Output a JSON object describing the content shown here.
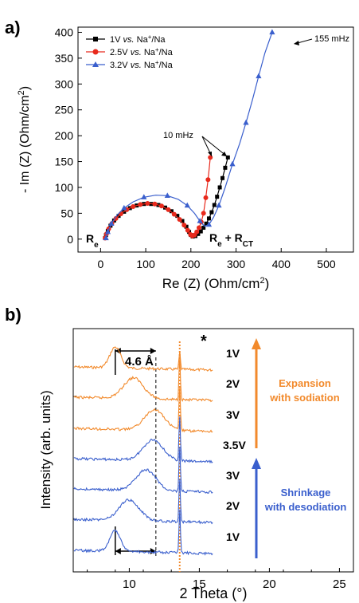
{
  "panel_a": {
    "label": "a)",
    "chart_data": {
      "type": "scatter",
      "xlabel": "Re (Z) (Ohm/cm²)",
      "ylabel": "- Im (Z) (Ohm/cm²)",
      "xlim": [
        -50,
        560
      ],
      "ylim": [
        -25,
        410
      ],
      "xticks": [
        0,
        100,
        200,
        300,
        400,
        500
      ],
      "yticks": [
        0,
        50,
        100,
        150,
        200,
        250,
        300,
        350,
        400
      ],
      "legend_position": "top-left",
      "series": [
        {
          "name": "1V vs. Na⁺/Na",
          "color": "#000000",
          "marker": "square",
          "points": [
            [
              10,
              2
            ],
            [
              12,
              8
            ],
            [
              16,
              16
            ],
            [
              22,
              26
            ],
            [
              30,
              36
            ],
            [
              40,
              45
            ],
            [
              52,
              53
            ],
            [
              65,
              60
            ],
            [
              80,
              65
            ],
            [
              96,
              68
            ],
            [
              112,
              68
            ],
            [
              128,
              66
            ],
            [
              143,
              61
            ],
            [
              157,
              54
            ],
            [
              170,
              45
            ],
            [
              181,
              35
            ],
            [
              190,
              24
            ],
            [
              196,
              14
            ],
            [
              200,
              8
            ],
            [
              204,
              5
            ],
            [
              210,
              6
            ],
            [
              216,
              10
            ],
            [
              222,
              15
            ],
            [
              228,
              22
            ],
            [
              234,
              30
            ],
            [
              240,
              40
            ],
            [
              246,
              52
            ],
            [
              252,
              66
            ],
            [
              258,
              82
            ],
            [
              264,
              100
            ],
            [
              270,
              118
            ],
            [
              276,
              138
            ],
            [
              282,
              158
            ]
          ]
        },
        {
          "name": "2.5V vs. Na⁺/Na",
          "color": "#e8291c",
          "marker": "circle",
          "points": [
            [
              10,
              2
            ],
            [
              13,
              10
            ],
            [
              18,
              20
            ],
            [
              25,
              30
            ],
            [
              34,
              40
            ],
            [
              45,
              49
            ],
            [
              58,
              57
            ],
            [
              72,
              63
            ],
            [
              88,
              67
            ],
            [
              104,
              69
            ],
            [
              120,
              68
            ],
            [
              135,
              64
            ],
            [
              150,
              57
            ],
            [
              163,
              48
            ],
            [
              175,
              38
            ],
            [
              185,
              27
            ],
            [
              193,
              17
            ],
            [
              199,
              9
            ],
            [
              203,
              6
            ],
            [
              208,
              8
            ],
            [
              213,
              14
            ],
            [
              218,
              22
            ],
            [
              223,
              33
            ],
            [
              228,
              50
            ],
            [
              233,
              80
            ],
            [
              238,
              115
            ],
            [
              243,
              158
            ]
          ]
        },
        {
          "name": "3.2V vs. Na⁺/Na",
          "color": "#3a5fcd",
          "marker": "triangle",
          "points": [
            [
              12,
              2
            ],
            [
              16,
              14
            ],
            [
              24,
              30
            ],
            [
              36,
              46
            ],
            [
              52,
              60
            ],
            [
              72,
              72
            ],
            [
              96,
              81
            ],
            [
              122,
              85
            ],
            [
              148,
              84
            ],
            [
              172,
              77
            ],
            [
              192,
              65
            ],
            [
              208,
              50
            ],
            [
              220,
              35
            ],
            [
              230,
              25
            ],
            [
              240,
              28
            ],
            [
              250,
              42
            ],
            [
              262,
              65
            ],
            [
              276,
              100
            ],
            [
              292,
              145
            ],
            [
              308,
              185
            ],
            [
              322,
              225
            ],
            [
              336,
              268
            ],
            [
              350,
              315
            ],
            [
              364,
              360
            ],
            [
              380,
              400
            ]
          ]
        }
      ],
      "annotations": [
        "10 mHz",
        "155 mHz",
        "Re",
        "Re + RCT"
      ]
    },
    "ytick_labels": [
      "0",
      "50",
      "100",
      "150",
      "200",
      "250",
      "300",
      "350",
      "400"
    ],
    "xtick_labels": [
      "0",
      "100",
      "200",
      "300",
      "400",
      "500"
    ],
    "legend": [
      {
        "volt": "1V",
        "vs": "vs.",
        "na": "Na",
        "sup": "+",
        "tail": "/Na"
      },
      {
        "volt": "2.5V",
        "vs": "vs.",
        "na": "Na",
        "sup": "+",
        "tail": "/Na"
      },
      {
        "volt": "3.2V",
        "vs": "vs.",
        "na": "Na",
        "sup": "+",
        "tail": "/Na"
      }
    ],
    "ylabel_main": "- Im (Z) (Ohm/cm",
    "ylabel_sup": "2",
    "ylabel_end": ")",
    "xlabel_main": "Re (Z) (Ohm/cm",
    "xlabel_sup": "2",
    "xlabel_end": ")",
    "ann_10mhz": "10 mHz",
    "ann_155mhz": "155 mHz",
    "ann_re": "R",
    "ann_re_sub": "e",
    "ann_rect": "R",
    "ann_rect_sub": "e",
    "ann_rect_plus": " + R",
    "ann_rect_sub2": "CT"
  },
  "panel_b": {
    "label": "b)",
    "chart_data": {
      "type": "line",
      "xlabel": "2 Theta (°)",
      "ylabel": "Intensity (arb. units)",
      "xlim": [
        6,
        26
      ],
      "xticks": [
        10,
        15,
        20,
        25
      ],
      "series": [
        {
          "name": "1V",
          "color": "#f28a2c",
          "peak": 9.0
        },
        {
          "name": "2V",
          "color": "#f28a2c",
          "peak": 10.3
        },
        {
          "name": "3V",
          "color": "#f28a2c",
          "peak": 11.8
        },
        {
          "name": "3.5V",
          "color": "#3a5fcd",
          "peak": 11.7
        },
        {
          "name": "3V",
          "color": "#3a5fcd",
          "peak": 11.2
        },
        {
          "name": "2V",
          "color": "#3a5fcd",
          "peak": 10.0
        },
        {
          "name": "1V",
          "color": "#3a5fcd",
          "peak": 9.0
        }
      ],
      "reference_line_x": 13.6,
      "dashed_lines_x": [
        9.0,
        11.9
      ],
      "annotations": [
        "4.6 Å",
        "*",
        "Expansion with sodiation",
        "Shrinkage with desodiation"
      ]
    },
    "xtick_labels": [
      "10",
      "15",
      "20",
      "25"
    ],
    "trace_labels": [
      "1V",
      "2V",
      "3V",
      "3.5V",
      "3V",
      "2V",
      "1V"
    ],
    "spacing_label": "4.6 Å",
    "star": "*",
    "expansion_1": "Expansion",
    "expansion_2": "with sodiation",
    "shrink_1": "Shrinkage",
    "shrink_2": "with desodiation",
    "ylabel": "Intensity (arb. units)",
    "xlabel": "2 Theta (°)",
    "colors": {
      "orange": "#f28a2c",
      "blue": "#3a5fcd",
      "black": "#000000",
      "red": "#e8291c"
    }
  }
}
